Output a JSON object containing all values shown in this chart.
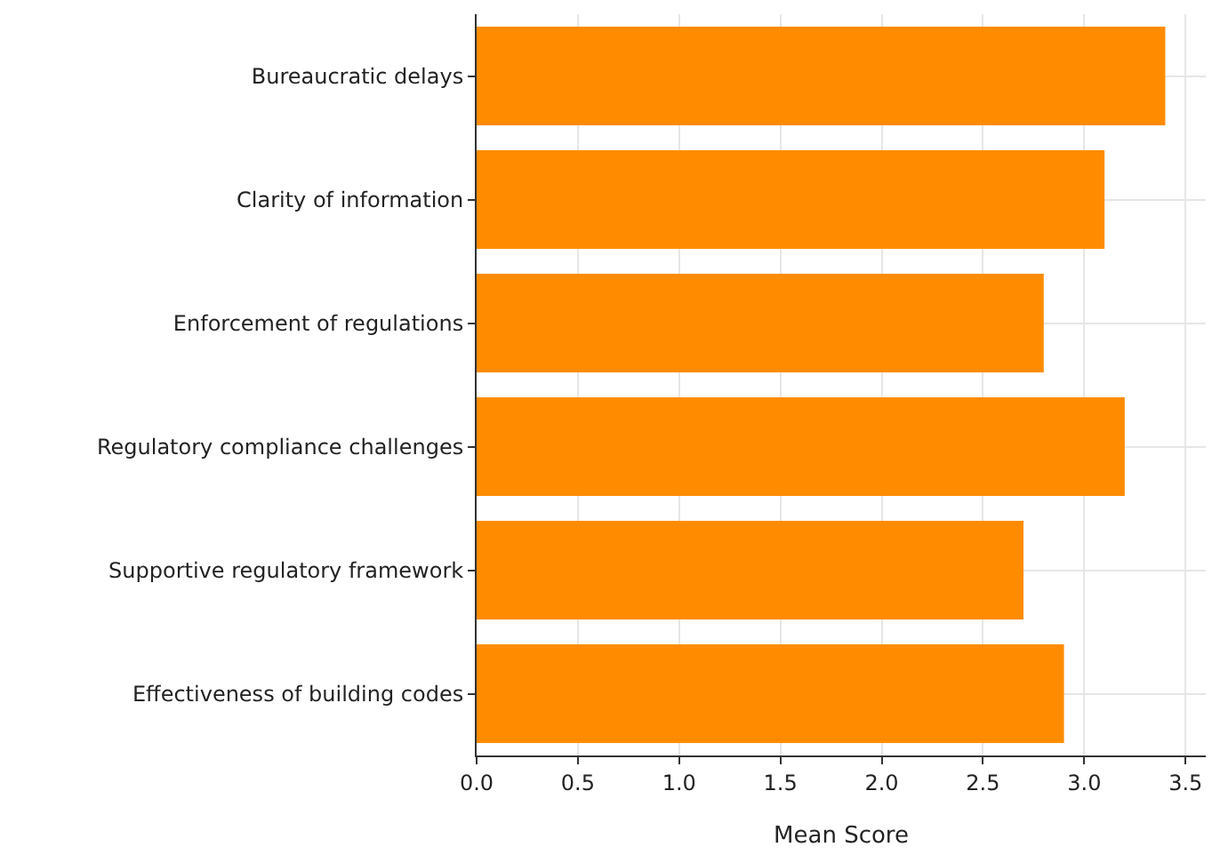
{
  "chart_data": {
    "type": "bar",
    "orientation": "horizontal",
    "xlabel": "Mean Score",
    "categories": [
      "Bureaucratic delays",
      "Clarity of information",
      "Enforcement of regulations",
      "Regulatory compliance challenges",
      "Supportive regulatory framework",
      "Effectiveness of building codes"
    ],
    "values": [
      3.4,
      3.1,
      2.8,
      3.2,
      2.7,
      2.9
    ],
    "color": "#ff8c00",
    "xlim": [
      0,
      3.6
    ],
    "xticks": [
      {
        "value": 0,
        "label": "0.0"
      },
      {
        "value": 0.5,
        "label": "0.5"
      },
      {
        "value": 1,
        "label": "1.0"
      },
      {
        "value": 1.5,
        "label": "1.5"
      },
      {
        "value": 2,
        "label": "2.0"
      },
      {
        "value": 2.5,
        "label": "2.5"
      },
      {
        "value": 3,
        "label": "3.0"
      },
      {
        "value": 3.5,
        "label": "3.5"
      }
    ],
    "grid": true
  }
}
